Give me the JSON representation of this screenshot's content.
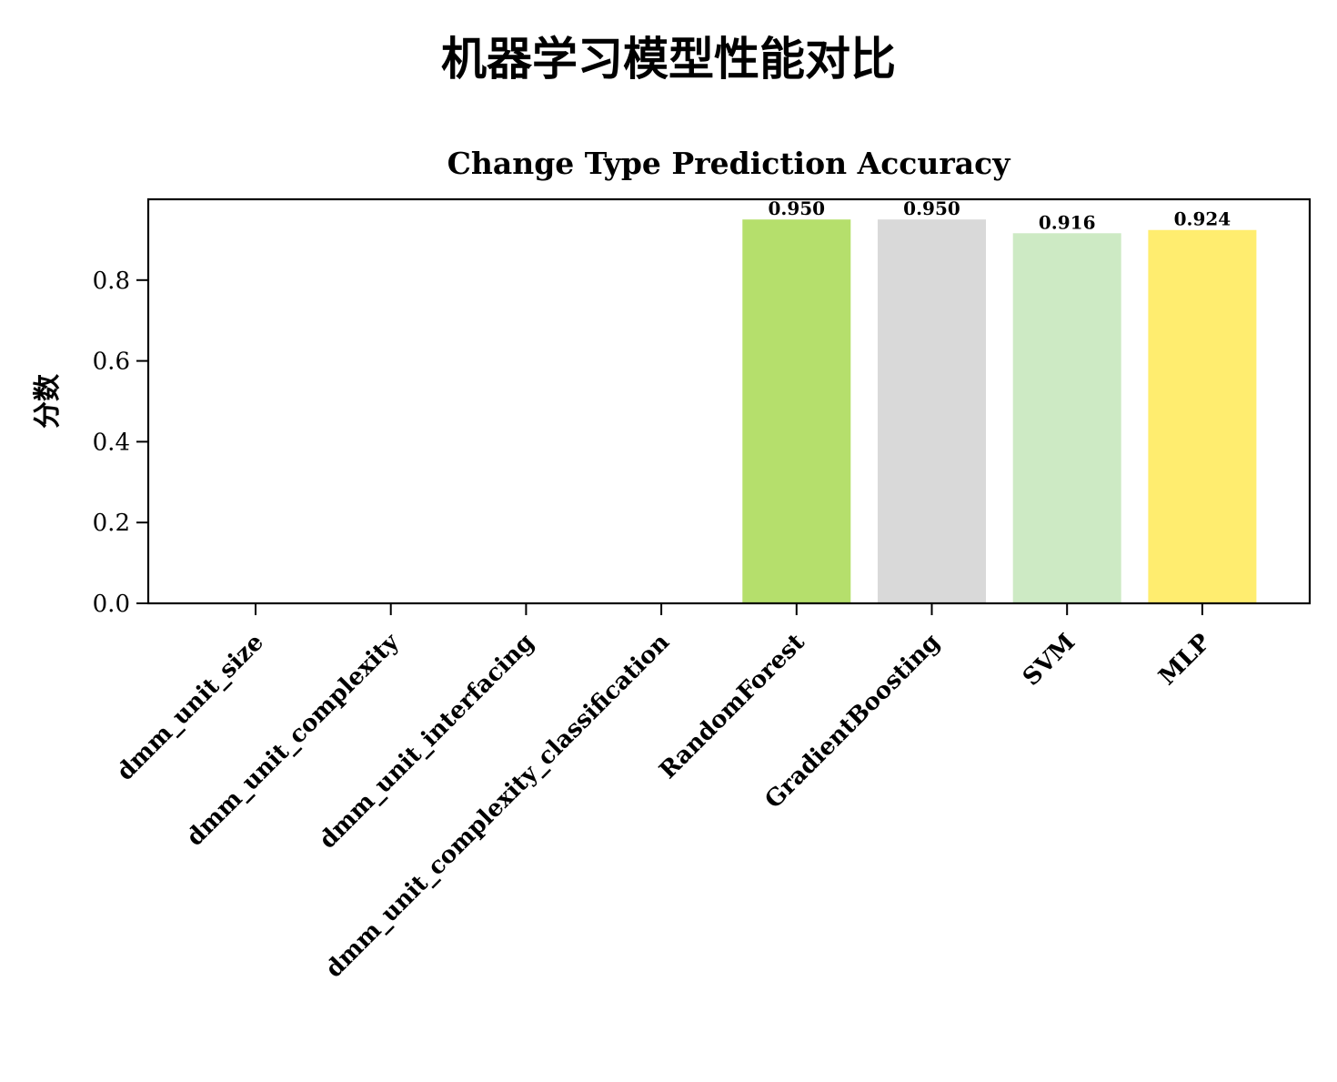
{
  "chart_data": {
    "type": "bar",
    "suptitle": "机器学习模型性能对比",
    "title": "Change Type Prediction Accuracy",
    "xlabel": "",
    "ylabel": "分数",
    "ylim": [
      0,
      1.0
    ],
    "yticks": [
      "0.0",
      "0.2",
      "0.4",
      "0.6",
      "0.8"
    ],
    "ytick_values": [
      0.0,
      0.2,
      0.4,
      0.6,
      0.8
    ],
    "categories": [
      "dmm_unit_size",
      "dmm_unit_complexity",
      "dmm_unit_interfacing",
      "dmm_unit_complexity_classification",
      "RandomForest",
      "GradientBoosting",
      "SVM",
      "MLP"
    ],
    "values": [
      null,
      null,
      null,
      null,
      0.95,
      0.95,
      0.916,
      0.924
    ],
    "data_labels": [
      "",
      "",
      "",
      "",
      "0.950",
      "0.950",
      "0.916",
      "0.924"
    ],
    "colors": [
      "#ffffff",
      "#ffffff",
      "#ffffff",
      "#ffffff",
      "#b5df6c",
      "#d9d9d9",
      "#cdeac4",
      "#ffed6f"
    ],
    "grid": false,
    "legend": "none"
  }
}
